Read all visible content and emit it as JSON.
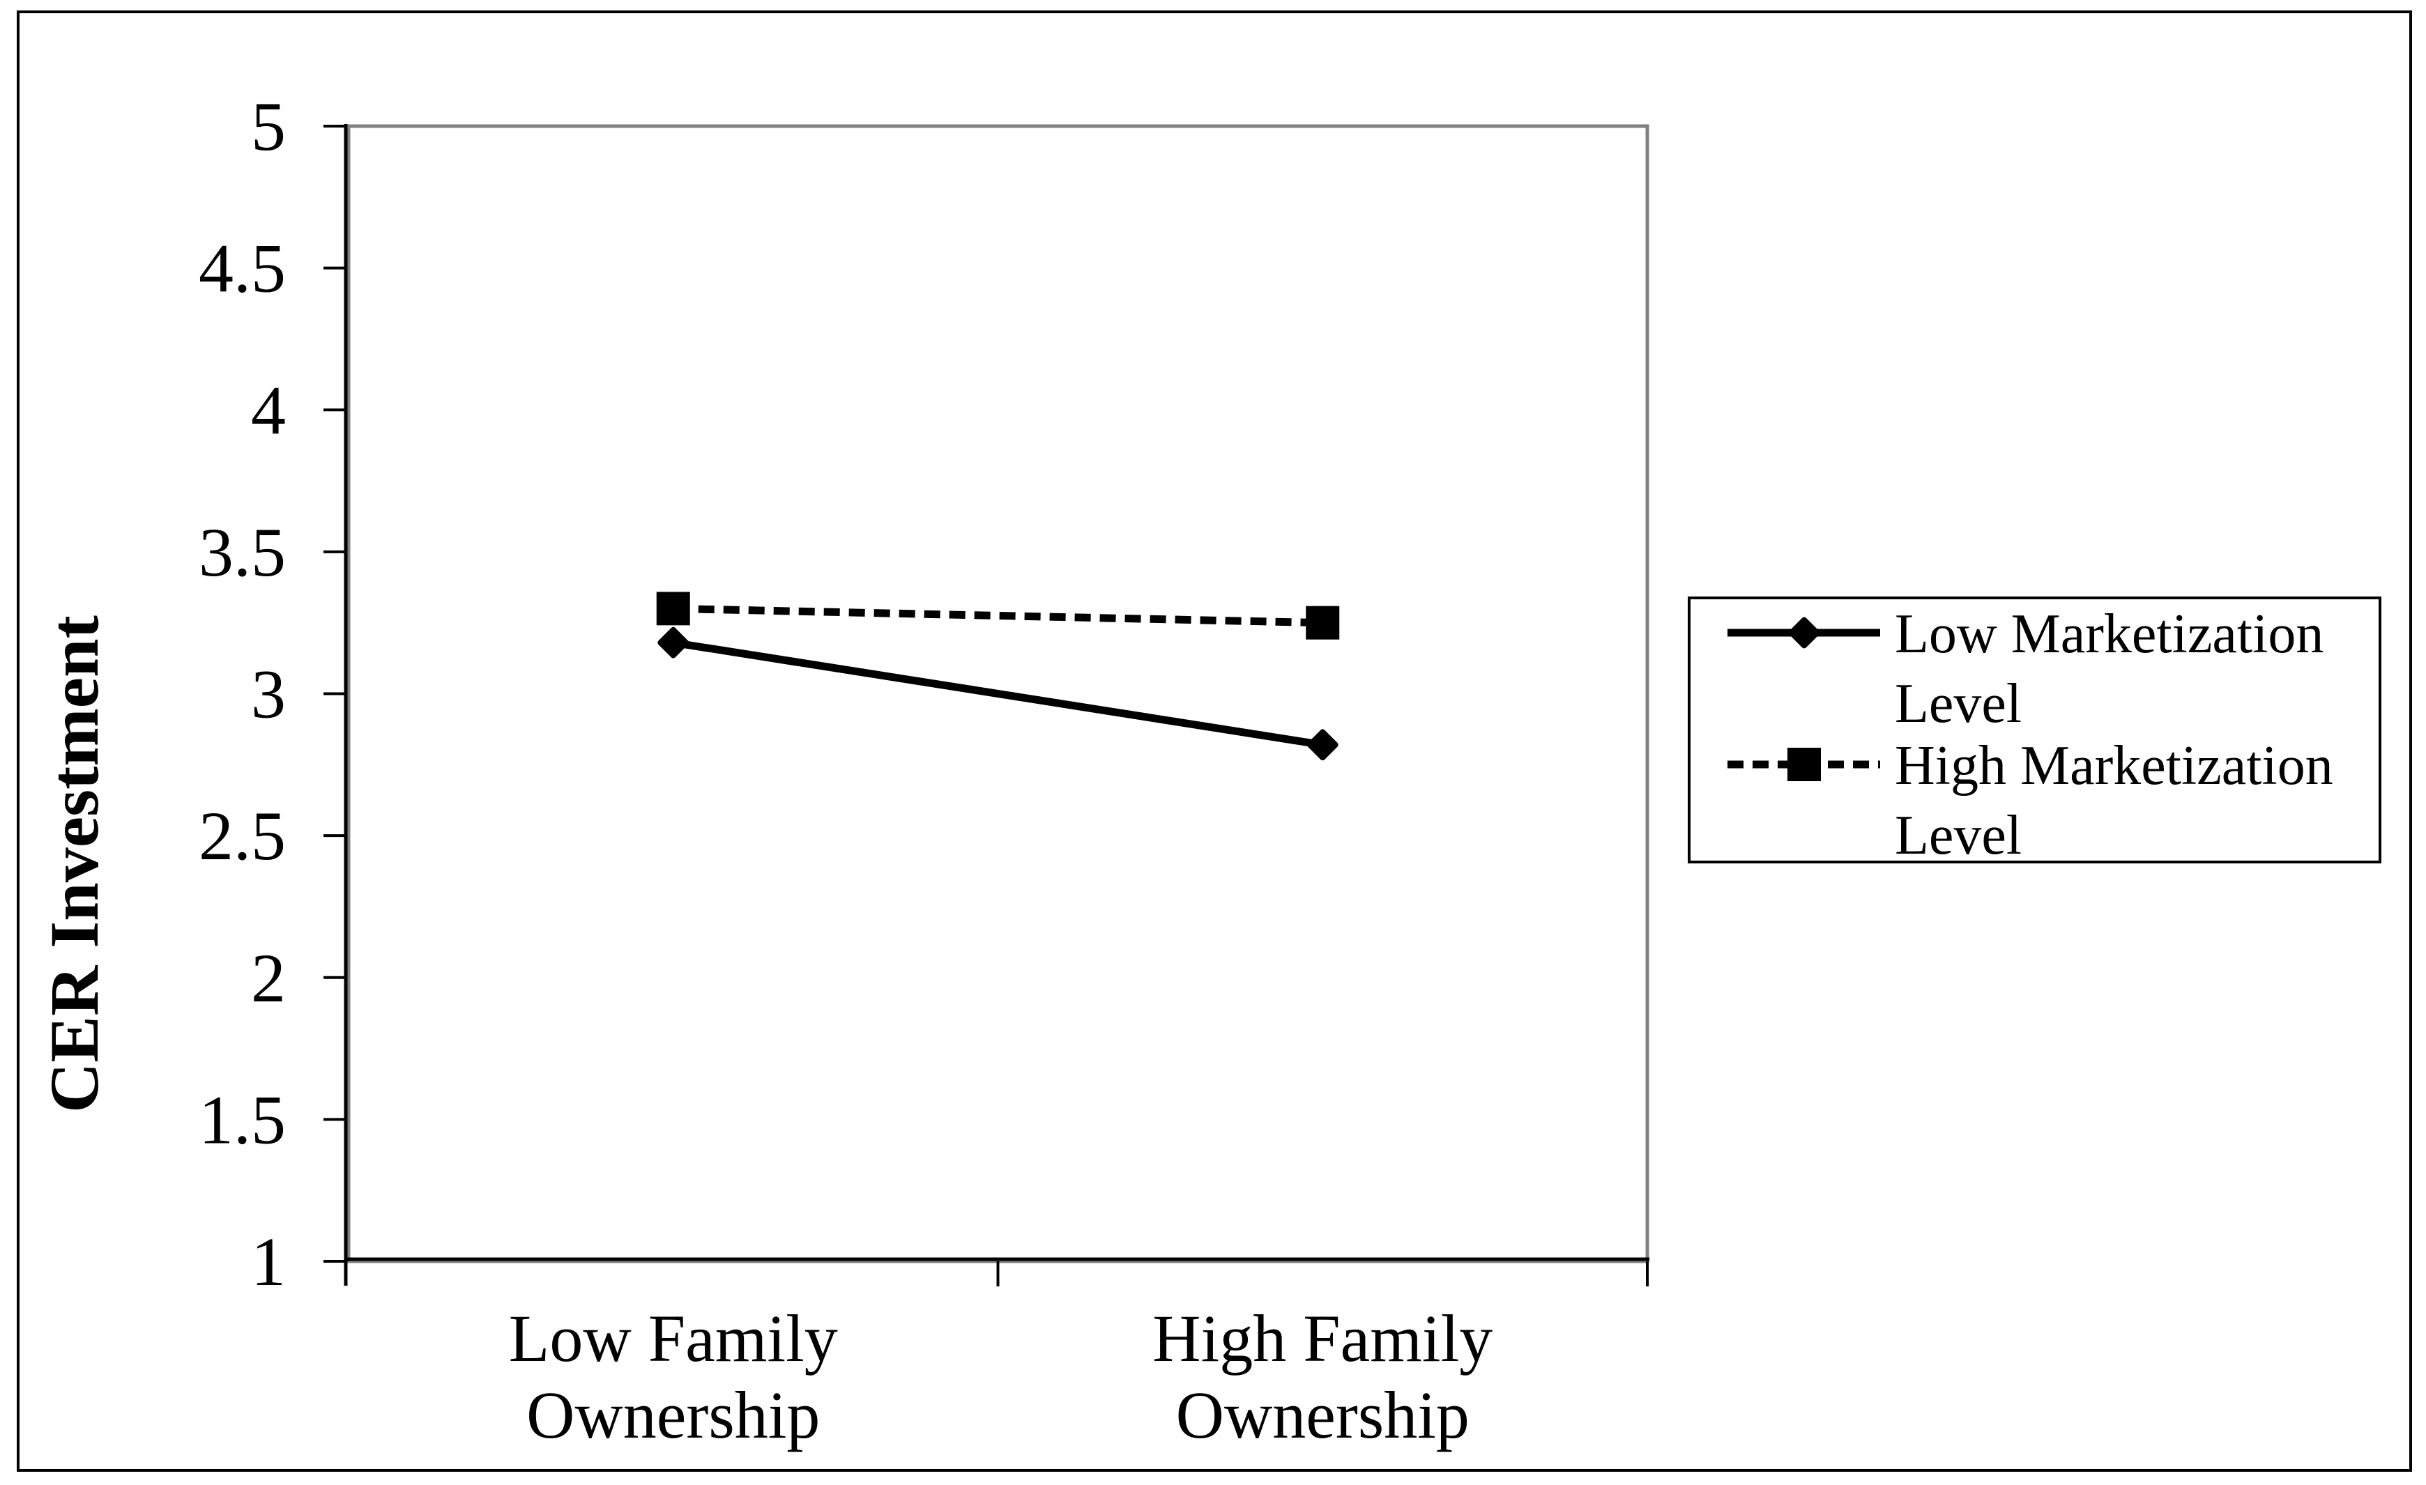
{
  "figure": {
    "background_color": "#ffffff",
    "outer_border_color": "#000000"
  },
  "chart_data": {
    "type": "line",
    "title": "",
    "xlabel": "",
    "ylabel": "CER Investment",
    "ylim": [
      1,
      5
    ],
    "ytick_step": 0.5,
    "grid": false,
    "legend_position": "right",
    "axis_color": "#000000",
    "plot_border_color": "#808080",
    "plot_background": "#ffffff",
    "yticks": [
      {
        "value": 5,
        "label": "5"
      },
      {
        "value": 4.5,
        "label": "4.5"
      },
      {
        "value": 4,
        "label": "4"
      },
      {
        "value": 3.5,
        "label": "3.5"
      },
      {
        "value": 3,
        "label": "3"
      },
      {
        "value": 2.5,
        "label": "2.5"
      },
      {
        "value": 2,
        "label": "2"
      },
      {
        "value": 1.5,
        "label": "1.5"
      },
      {
        "value": 1,
        "label": "1"
      }
    ],
    "categories": [
      {
        "label": "Low Family Ownership",
        "lines": [
          "Low Family",
          "Ownership"
        ]
      },
      {
        "label": "High Family Ownership",
        "lines": [
          "High Family",
          "Ownership"
        ]
      }
    ],
    "series": [
      {
        "name": "Low Marketization Level",
        "legend_lines": [
          "Low Marketization",
          "Level"
        ],
        "values": [
          3.18,
          2.82
        ],
        "line_style": "solid",
        "marker": "diamond",
        "color": "#000000"
      },
      {
        "name": "High Marketization Level",
        "legend_lines": [
          "High Marketization",
          "Level"
        ],
        "values": [
          3.3,
          3.25
        ],
        "line_style": "dashed",
        "marker": "square",
        "color": "#000000"
      }
    ]
  }
}
